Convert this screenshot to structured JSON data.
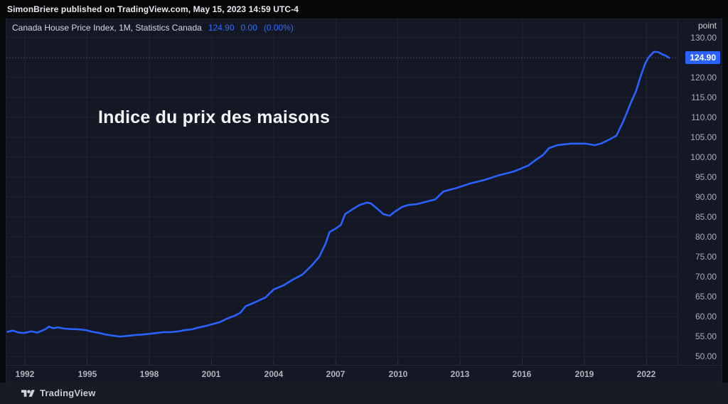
{
  "header": {
    "attribution": "SimonBriere published on TradingView.com, May 15, 2023 14:59 UTC-4"
  },
  "legend": {
    "symbol_title": "Canada House Price Index, 1M, Statistics Canada",
    "last_value": "124.90",
    "change": "0.00",
    "change_pct": "(0.00%)"
  },
  "overlay_title": "Indice du prix des maisons",
  "price_scale": {
    "unit_label": "point",
    "price_badge": "124.90"
  },
  "footer": {
    "brand": "TradingView"
  },
  "colors": {
    "accent": "#2962ff",
    "line": "#2962ff",
    "grid": "rgba(240,243,250,0.055)",
    "tick": "#2f3442",
    "axis_text": "#a9adb8",
    "badge_bg": "#2962ff"
  },
  "chart_data": {
    "type": "line",
    "title": "Indice du prix des maisons",
    "series_name": "Canada House Price Index",
    "interval": "1M",
    "source": "Statistics Canada",
    "ylabel_unit": "point",
    "grid": true,
    "legend_position": "top-left",
    "x_range": [
      1991.1,
      2023.5
    ],
    "y_range": [
      47.9,
      134.6
    ],
    "x_ticks": [
      1992,
      1995,
      1998,
      2001,
      2004,
      2007,
      2010,
      2013,
      2016,
      2019,
      2022
    ],
    "y_ticks": [
      130,
      125,
      120,
      115,
      110,
      105,
      100,
      95,
      90,
      85,
      80,
      75,
      70,
      65,
      60,
      55,
      50
    ],
    "y_tick_labels": [
      "130.00",
      "125.00",
      "120.00",
      "115.00",
      "110.00",
      "105.00",
      "100.00",
      "95.00",
      "90.00",
      "85.00",
      "80.00",
      "75.00",
      "70.00",
      "65.00",
      "60.00",
      "55.00",
      "50.00"
    ],
    "last_price": 124.9,
    "series": [
      {
        "name": "Canada House Price Index",
        "points": [
          [
            1991.15,
            56.2
          ],
          [
            1991.4,
            56.5
          ],
          [
            1991.7,
            56.0
          ],
          [
            1991.95,
            55.9
          ],
          [
            1992.3,
            56.3
          ],
          [
            1992.6,
            56.0
          ],
          [
            1993.0,
            56.9
          ],
          [
            1993.15,
            57.5
          ],
          [
            1993.35,
            57.1
          ],
          [
            1993.6,
            57.3
          ],
          [
            1993.9,
            57.0
          ],
          [
            1994.2,
            56.9
          ],
          [
            1994.6,
            56.8
          ],
          [
            1994.95,
            56.6
          ],
          [
            1995.25,
            56.2
          ],
          [
            1995.6,
            55.9
          ],
          [
            1995.9,
            55.5
          ],
          [
            1996.3,
            55.2
          ],
          [
            1996.6,
            55.0
          ],
          [
            1997.0,
            55.2
          ],
          [
            1997.3,
            55.4
          ],
          [
            1997.65,
            55.5
          ],
          [
            1998.0,
            55.7
          ],
          [
            1998.35,
            55.9
          ],
          [
            1998.7,
            56.1
          ],
          [
            1999.0,
            56.1
          ],
          [
            1999.4,
            56.3
          ],
          [
            1999.7,
            56.6
          ],
          [
            2000.05,
            56.8
          ],
          [
            2000.4,
            57.3
          ],
          [
            2000.75,
            57.7
          ],
          [
            2001.1,
            58.2
          ],
          [
            2001.4,
            58.6
          ],
          [
            2001.75,
            59.5
          ],
          [
            2002.1,
            60.2
          ],
          [
            2002.4,
            61.0
          ],
          [
            2002.65,
            62.6
          ],
          [
            2003.1,
            63.6
          ],
          [
            2003.6,
            64.8
          ],
          [
            2004.0,
            66.8
          ],
          [
            2004.5,
            67.9
          ],
          [
            2004.9,
            69.2
          ],
          [
            2005.4,
            70.6
          ],
          [
            2005.85,
            72.9
          ],
          [
            2006.2,
            75.0
          ],
          [
            2006.5,
            78.2
          ],
          [
            2006.7,
            81.2
          ],
          [
            2007.0,
            82.1
          ],
          [
            2007.25,
            83.0
          ],
          [
            2007.45,
            85.7
          ],
          [
            2007.8,
            86.9
          ],
          [
            2008.15,
            88.0
          ],
          [
            2008.5,
            88.6
          ],
          [
            2008.7,
            88.4
          ],
          [
            2009.0,
            87.1
          ],
          [
            2009.3,
            85.7
          ],
          [
            2009.6,
            85.3
          ],
          [
            2009.85,
            86.3
          ],
          [
            2010.2,
            87.5
          ],
          [
            2010.5,
            88.0
          ],
          [
            2010.9,
            88.2
          ],
          [
            2011.35,
            88.8
          ],
          [
            2011.8,
            89.4
          ],
          [
            2012.2,
            91.4
          ],
          [
            2012.85,
            92.3
          ],
          [
            2013.5,
            93.4
          ],
          [
            2014.2,
            94.3
          ],
          [
            2014.9,
            95.5
          ],
          [
            2015.6,
            96.4
          ],
          [
            2016.3,
            97.9
          ],
          [
            2016.6,
            99.1
          ],
          [
            2017.0,
            100.5
          ],
          [
            2017.3,
            102.3
          ],
          [
            2017.7,
            103.0
          ],
          [
            2018.35,
            103.4
          ],
          [
            2019.05,
            103.4
          ],
          [
            2019.5,
            103.0
          ],
          [
            2019.8,
            103.4
          ],
          [
            2020.2,
            104.4
          ],
          [
            2020.55,
            105.4
          ],
          [
            2020.85,
            108.6
          ],
          [
            2021.05,
            111.1
          ],
          [
            2021.3,
            114.3
          ],
          [
            2021.5,
            116.6
          ],
          [
            2021.7,
            120.0
          ],
          [
            2021.95,
            123.6
          ],
          [
            2022.1,
            125.0
          ],
          [
            2022.35,
            126.4
          ],
          [
            2022.55,
            126.4
          ],
          [
            2022.8,
            125.7
          ],
          [
            2022.95,
            125.4
          ],
          [
            2023.1,
            124.9
          ]
        ]
      }
    ]
  }
}
